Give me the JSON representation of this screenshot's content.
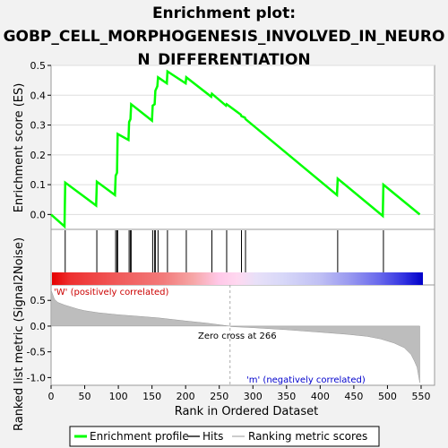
{
  "chart_data": {
    "type": "line",
    "title_lines": [
      "Enrichment plot:",
      "GOBP_CELL_MORPHOGENESIS_INVOLVED_IN_NEURO",
      "N_DIFFERENTIATION"
    ],
    "top_panel": {
      "ylabel": "Enrichment score (ES)",
      "ylim": [
        -0.05,
        0.5
      ],
      "yticks": [
        "0.0",
        "0.1",
        "0.2",
        "0.3",
        "0.4",
        "0.5"
      ],
      "series": [
        {
          "name": "Enrichment profile",
          "color": "#00ff00",
          "x": [
            0,
            20,
            21,
            67,
            68,
            95,
            96,
            98,
            99,
            115,
            116,
            118,
            119,
            150,
            151,
            154,
            155,
            158,
            159,
            172,
            173,
            200,
            201,
            238,
            239,
            260,
            261,
            282,
            283,
            288,
            289,
            425,
            426,
            493,
            494,
            548
          ],
          "y": [
            0.0,
            -0.04,
            0.107,
            0.03,
            0.11,
            0.065,
            0.13,
            0.14,
            0.27,
            0.25,
            0.31,
            0.32,
            0.37,
            0.315,
            0.365,
            0.37,
            0.415,
            0.43,
            0.46,
            0.44,
            0.48,
            0.44,
            0.46,
            0.395,
            0.405,
            0.365,
            0.37,
            0.335,
            0.33,
            0.325,
            0.32,
            0.065,
            0.12,
            -0.005,
            0.1,
            0.0
          ]
        }
      ]
    },
    "hits": {
      "name": "Hits",
      "positions": [
        21,
        68,
        96,
        98,
        99,
        116,
        118,
        119,
        151,
        154,
        155,
        159,
        173,
        201,
        239,
        261,
        283,
        289,
        426,
        494
      ]
    },
    "bottom_panel": {
      "ylabel": "Ranked list metric (Signal2Noise)",
      "ylim": [
        -1.15,
        0.8
      ],
      "yticks": [
        "0.5",
        "0.0",
        "-0.5",
        "-1.0"
      ],
      "xlabel": "Rank in Ordered Dataset",
      "xlim": [
        0,
        570
      ],
      "xticks": [
        "0",
        "50",
        "100",
        "150",
        "200",
        "250",
        "300",
        "350",
        "400",
        "450",
        "500",
        "550"
      ],
      "metric_profile": {
        "x": [
          0,
          5,
          10,
          20,
          30,
          40,
          50,
          70,
          100,
          130,
          160,
          200,
          230,
          260,
          266,
          267,
          300,
          350,
          400,
          440,
          470,
          490,
          510,
          525,
          535,
          540,
          544,
          546,
          548
        ],
        "y": [
          0.7,
          0.52,
          0.46,
          0.41,
          0.37,
          0.33,
          0.3,
          0.26,
          0.22,
          0.19,
          0.16,
          0.1,
          0.06,
          0.01,
          0.0,
          -0.01,
          -0.03,
          -0.07,
          -0.12,
          -0.16,
          -0.2,
          -0.25,
          -0.33,
          -0.42,
          -0.55,
          -0.68,
          -0.8,
          -0.95,
          -1.1
        ]
      },
      "zero_cross_label": "Zero cross at 266",
      "zero_cross": 266,
      "positive_label": "'W' (positively correlated)",
      "negative_label": "'m' (negatively correlated)"
    },
    "legend": [
      "Enrichment profile",
      "Hits",
      "Ranking metric scores"
    ],
    "colors": {
      "profile": "#00ff00",
      "positive_text": "#cc0000",
      "negative_text": "#0000cc",
      "metric_fill": "#bdbdbd"
    }
  }
}
